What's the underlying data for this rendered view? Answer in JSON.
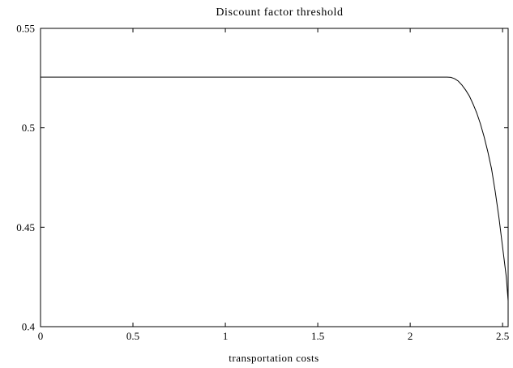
{
  "chart_data": {
    "type": "line",
    "title": "Discount factor threshold",
    "xlabel": "transportation costs",
    "ylabel": "",
    "xlim": [
      0,
      2.53
    ],
    "ylim": [
      0.4,
      0.55
    ],
    "xticks": [
      0,
      0.5,
      1,
      1.5,
      2,
      2.5
    ],
    "xtick_labels": [
      "0",
      "0.5",
      "1",
      "1.5",
      "2",
      "2.5"
    ],
    "yticks": [
      0.4,
      0.45,
      0.5,
      0.55
    ],
    "ytick_labels": [
      "0.4",
      "0.45",
      "0.5",
      "0.55"
    ],
    "grid": false,
    "series": [
      {
        "x": [
          0,
          0.5,
          1.0,
          1.5,
          2.0,
          2.2,
          2.22,
          2.24,
          2.26,
          2.28,
          2.3,
          2.32,
          2.34,
          2.36,
          2.38,
          2.4,
          2.42,
          2.44,
          2.46,
          2.48,
          2.5,
          2.52,
          2.53
        ],
        "y": [
          0.5255,
          0.5255,
          0.5255,
          0.5255,
          0.5255,
          0.5255,
          0.5254,
          0.5247,
          0.5235,
          0.5215,
          0.519,
          0.516,
          0.512,
          0.5075,
          0.502,
          0.4955,
          0.488,
          0.4795,
          0.468,
          0.455,
          0.44,
          0.425,
          0.413
        ]
      }
    ]
  }
}
